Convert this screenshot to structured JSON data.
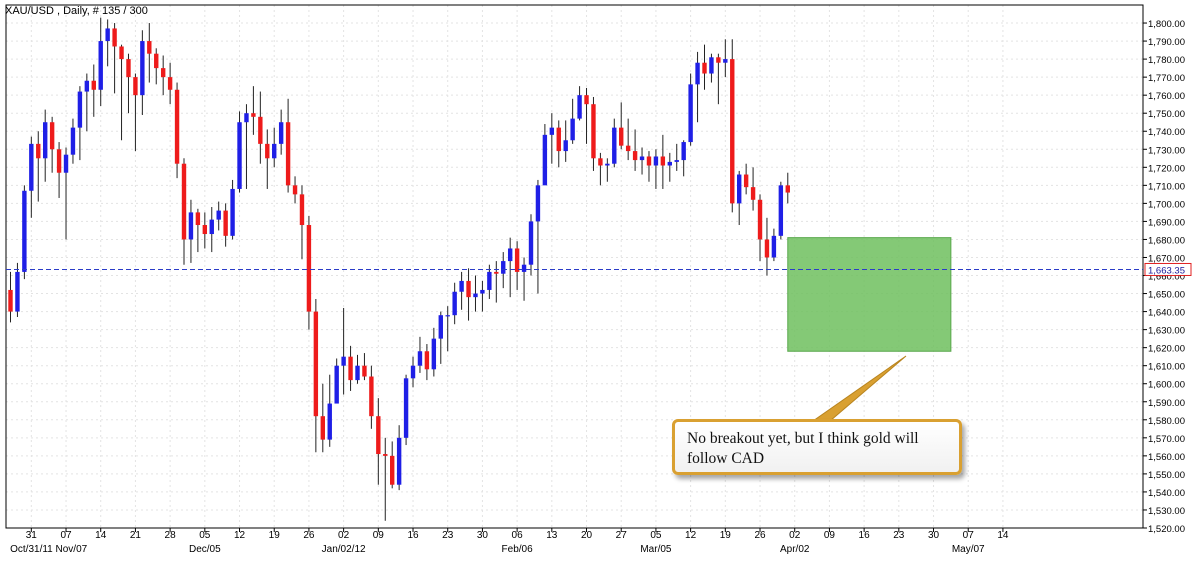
{
  "header": {
    "title": "XAU/USD , Daily, # 135 / 300"
  },
  "annotation": {
    "text": "No breakout yet, but I think gold will follow CAD"
  },
  "colors": {
    "up": "#1f1fe6",
    "down": "#ee1b1b",
    "wick": "#222222",
    "last_price": "#2b3cc8",
    "consolidation_box": "#6ebf5e",
    "callout_border": "#d9a031"
  },
  "chart_data": {
    "type": "candlestick",
    "title": "XAU/USD , Daily, # 135 / 300",
    "ylim": [
      1520,
      1810
    ],
    "y_ticks": [
      1520,
      1530,
      1540,
      1550,
      1560,
      1570,
      1580,
      1590,
      1600,
      1610,
      1620,
      1630,
      1640,
      1650,
      1660,
      1670,
      1680,
      1690,
      1700,
      1710,
      1720,
      1730,
      1740,
      1750,
      1760,
      1770,
      1780,
      1790,
      1800
    ],
    "y_tick_labels": [
      "1,520.00",
      "1,530.00",
      "1,540.00",
      "1,550.00",
      "1,560.00",
      "1,570.00",
      "1,580.00",
      "1,590.00",
      "1,600.00",
      "1,610.00",
      "1,620.00",
      "1,630.00",
      "1,640.00",
      "1,650.00",
      "1,660.00",
      "1,670.00",
      "1,680.00",
      "1,690.00",
      "1,700.00",
      "1,710.00",
      "1,720.00",
      "1,730.00",
      "1,740.00",
      "1,750.00",
      "1,760.00",
      "1,770.00",
      "1,780.00",
      "1,790.00",
      "1,800.00"
    ],
    "last_price": 1663.35,
    "last_price_label": "1,663.35",
    "x_ticks": [
      {
        "label": "31",
        "index": 3
      },
      {
        "label": "07",
        "index": 8
      },
      {
        "label": "14",
        "index": 13
      },
      {
        "label": "21",
        "index": 18
      },
      {
        "label": "28",
        "index": 23
      },
      {
        "label": "05",
        "index": 28
      },
      {
        "label": "12",
        "index": 33
      },
      {
        "label": "19",
        "index": 38
      },
      {
        "label": "26",
        "index": 43
      },
      {
        "label": "02",
        "index": 48
      },
      {
        "label": "09",
        "index": 53
      },
      {
        "label": "16",
        "index": 58
      },
      {
        "label": "23",
        "index": 63
      },
      {
        "label": "30",
        "index": 68
      },
      {
        "label": "06",
        "index": 73
      },
      {
        "label": "13",
        "index": 78
      },
      {
        "label": "20",
        "index": 83
      },
      {
        "label": "27",
        "index": 88
      },
      {
        "label": "05",
        "index": 93
      },
      {
        "label": "12",
        "index": 98
      },
      {
        "label": "19",
        "index": 103
      },
      {
        "label": "26",
        "index": 108
      },
      {
        "label": "02",
        "index": 113
      },
      {
        "label": "09",
        "index": 118
      },
      {
        "label": "16",
        "index": 123
      },
      {
        "label": "23",
        "index": 128
      },
      {
        "label": "30",
        "index": 133
      },
      {
        "label": "07",
        "index": 138
      },
      {
        "label": "14",
        "index": 143
      }
    ],
    "month_labels": [
      {
        "label": "Oct/31/11 Nov/07",
        "index": 5.5
      },
      {
        "label": "Dec/05",
        "index": 28
      },
      {
        "label": "Jan/02/12",
        "index": 48
      },
      {
        "label": "Feb/06",
        "index": 73
      },
      {
        "label": "Mar/05",
        "index": 93
      },
      {
        "label": "Apr/02",
        "index": 113
      },
      {
        "label": "May/07",
        "index": 138
      }
    ],
    "consolidation_box": {
      "index_start": 112,
      "index_end": 135.5,
      "low": 1618,
      "high": 1681
    },
    "candles": [
      [
        1652,
        1640,
        1662,
        1634
      ],
      [
        1640,
        1662,
        1667,
        1637
      ],
      [
        1662,
        1707,
        1710,
        1658
      ],
      [
        1707,
        1733,
        1737,
        1692
      ],
      [
        1733,
        1725,
        1740,
        1701
      ],
      [
        1725,
        1745,
        1752,
        1712
      ],
      [
        1745,
        1730,
        1748,
        1717
      ],
      [
        1730,
        1717,
        1734,
        1703
      ],
      [
        1717,
        1727,
        1731,
        1680
      ],
      [
        1727,
        1742,
        1747,
        1722
      ],
      [
        1742,
        1762,
        1765,
        1724
      ],
      [
        1762,
        1768,
        1772,
        1740
      ],
      [
        1768,
        1763,
        1777,
        1748
      ],
      [
        1763,
        1790,
        1803,
        1754
      ],
      [
        1790,
        1797,
        1802,
        1776
      ],
      [
        1797,
        1787,
        1800,
        1761
      ],
      [
        1787,
        1780,
        1788,
        1735
      ],
      [
        1780,
        1770,
        1783,
        1750
      ],
      [
        1770,
        1760,
        1772,
        1729
      ],
      [
        1760,
        1790,
        1796,
        1749
      ],
      [
        1790,
        1783,
        1800,
        1767
      ],
      [
        1783,
        1775,
        1786,
        1766
      ],
      [
        1775,
        1770,
        1782,
        1760
      ],
      [
        1770,
        1763,
        1778,
        1755
      ],
      [
        1763,
        1722,
        1767,
        1714
      ],
      [
        1722,
        1680,
        1725,
        1666
      ],
      [
        1680,
        1695,
        1702,
        1667
      ],
      [
        1695,
        1688,
        1697,
        1673
      ],
      [
        1688,
        1683,
        1695,
        1675
      ],
      [
        1683,
        1691,
        1698,
        1673
      ],
      [
        1691,
        1696,
        1701,
        1685
      ],
      [
        1696,
        1682,
        1700,
        1676
      ],
      [
        1682,
        1708,
        1713,
        1680
      ],
      [
        1708,
        1745,
        1751,
        1706
      ],
      [
        1745,
        1750,
        1755,
        1708
      ],
      [
        1750,
        1748,
        1765,
        1738
      ],
      [
        1748,
        1733,
        1762,
        1722
      ],
      [
        1733,
        1725,
        1741,
        1708
      ],
      [
        1725,
        1733,
        1742,
        1720
      ],
      [
        1733,
        1745,
        1752,
        1727
      ],
      [
        1745,
        1710,
        1758,
        1706
      ],
      [
        1710,
        1705,
        1715,
        1700
      ],
      [
        1705,
        1688,
        1710,
        1669
      ],
      [
        1688,
        1640,
        1693,
        1630
      ],
      [
        1640,
        1582,
        1647,
        1562
      ],
      [
        1582,
        1569,
        1600,
        1562
      ],
      [
        1569,
        1589,
        1605,
        1565
      ],
      [
        1589,
        1610,
        1614,
        1592
      ],
      [
        1610,
        1615,
        1642,
        1594
      ],
      [
        1615,
        1602,
        1621,
        1596
      ],
      [
        1602,
        1610,
        1616,
        1600
      ],
      [
        1610,
        1604,
        1617,
        1602
      ],
      [
        1604,
        1582,
        1610,
        1575
      ],
      [
        1582,
        1561,
        1592,
        1544
      ],
      [
        1561,
        1560,
        1570,
        1524
      ],
      [
        1560,
        1544,
        1568,
        1542
      ],
      [
        1544,
        1570,
        1577,
        1541
      ],
      [
        1570,
        1603,
        1605,
        1566
      ],
      [
        1603,
        1610,
        1615,
        1598
      ],
      [
        1610,
        1618,
        1626,
        1606
      ],
      [
        1618,
        1608,
        1622,
        1602
      ],
      [
        1608,
        1625,
        1631,
        1604
      ],
      [
        1625,
        1638,
        1640,
        1611
      ],
      [
        1638,
        1638,
        1643,
        1618
      ],
      [
        1638,
        1651,
        1656,
        1633
      ],
      [
        1651,
        1657,
        1662,
        1641
      ],
      [
        1657,
        1648,
        1664,
        1635
      ],
      [
        1648,
        1650,
        1660,
        1640
      ],
      [
        1650,
        1652,
        1657,
        1640
      ],
      [
        1652,
        1662,
        1666,
        1647
      ],
      [
        1662,
        1661,
        1668,
        1645
      ],
      [
        1661,
        1668,
        1673,
        1653
      ],
      [
        1668,
        1675,
        1681,
        1648
      ],
      [
        1675,
        1662,
        1679,
        1652
      ],
      [
        1662,
        1666,
        1670,
        1646
      ],
      [
        1666,
        1690,
        1694,
        1660
      ],
      [
        1690,
        1710,
        1713,
        1650
      ],
      [
        1710,
        1738,
        1744,
        1713
      ],
      [
        1738,
        1742,
        1750,
        1722
      ],
      [
        1742,
        1729,
        1746,
        1720
      ],
      [
        1729,
        1735,
        1746,
        1723
      ],
      [
        1735,
        1747,
        1758,
        1733
      ],
      [
        1747,
        1760,
        1765,
        1746
      ],
      [
        1760,
        1755,
        1764,
        1733
      ],
      [
        1755,
        1725,
        1759,
        1718
      ],
      [
        1725,
        1721,
        1728,
        1710
      ],
      [
        1721,
        1722,
        1725,
        1712
      ],
      [
        1722,
        1742,
        1747,
        1720
      ],
      [
        1742,
        1732,
        1756,
        1730
      ],
      [
        1732,
        1729,
        1747,
        1724
      ],
      [
        1729,
        1724,
        1741,
        1718
      ],
      [
        1724,
        1726,
        1731,
        1716
      ],
      [
        1726,
        1721,
        1729,
        1712
      ],
      [
        1721,
        1726,
        1730,
        1708
      ],
      [
        1726,
        1721,
        1738,
        1708
      ],
      [
        1721,
        1723,
        1728,
        1712
      ],
      [
        1723,
        1724,
        1733,
        1718
      ],
      [
        1724,
        1734,
        1735,
        1715
      ],
      [
        1734,
        1766,
        1772,
        1732
      ],
      [
        1766,
        1778,
        1784,
        1745
      ],
      [
        1778,
        1772,
        1788,
        1763
      ],
      [
        1772,
        1781,
        1783,
        1767
      ],
      [
        1781,
        1778,
        1783,
        1755
      ],
      [
        1778,
        1780,
        1791,
        1770
      ],
      [
        1780,
        1700,
        1791,
        1695
      ],
      [
        1700,
        1716,
        1718,
        1688
      ],
      [
        1716,
        1709,
        1722,
        1705
      ],
      [
        1709,
        1702,
        1720,
        1696
      ],
      [
        1702,
        1680,
        1705,
        1668
      ],
      [
        1680,
        1670,
        1692,
        1660
      ],
      [
        1670,
        1682,
        1686,
        1668
      ],
      [
        1682,
        1710,
        1712,
        1680
      ],
      [
        1710,
        1706,
        1717,
        1700
      ]
    ]
  }
}
